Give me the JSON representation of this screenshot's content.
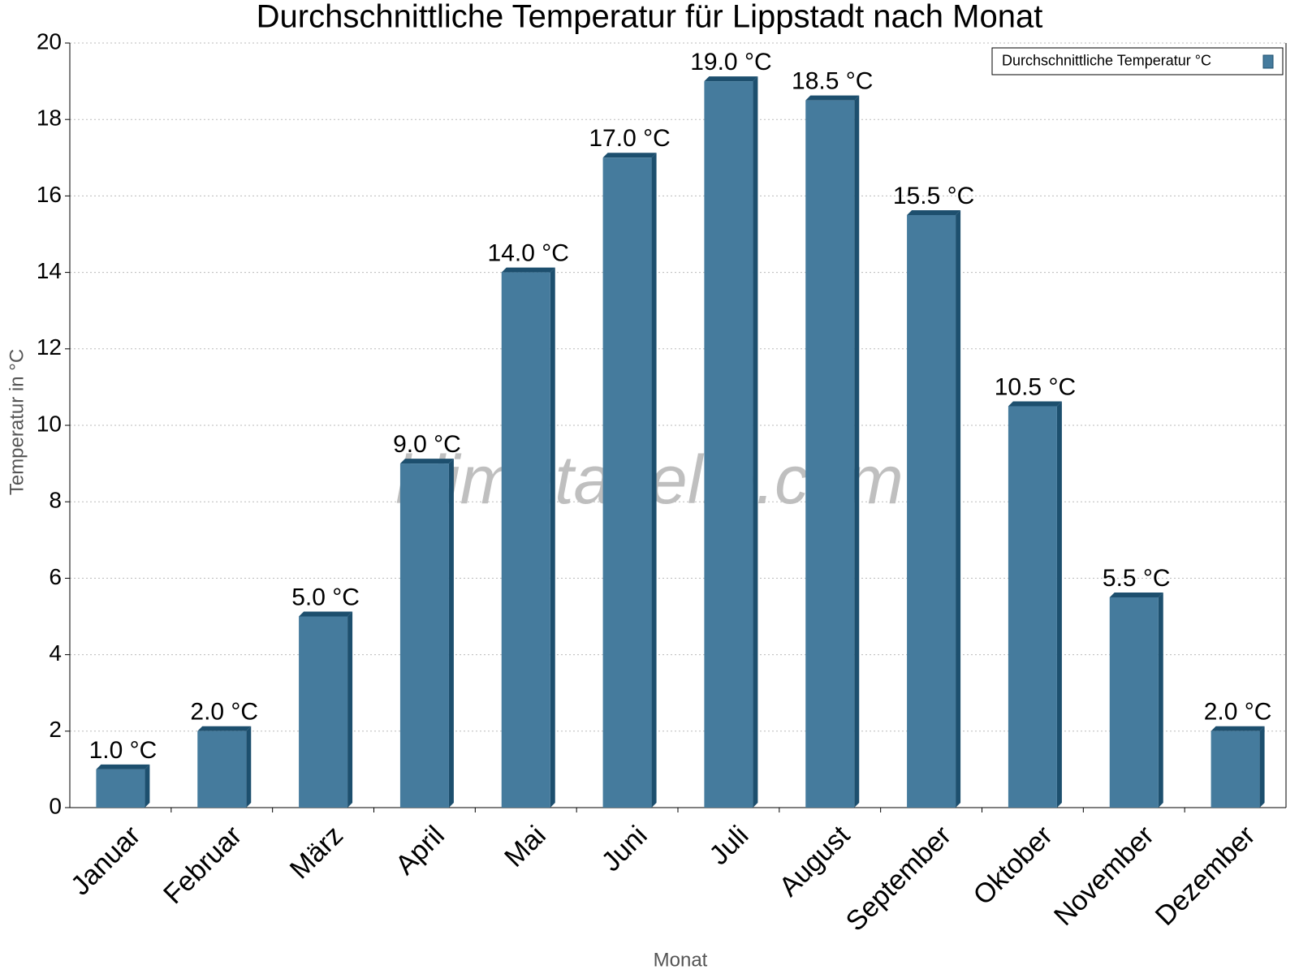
{
  "chart_data": {
    "type": "bar",
    "title": "Durchschnittliche Temperatur für Lippstadt nach Monat",
    "watermark": "klimatabelle.com",
    "x_label": "Monat",
    "y_label": "Temperatur in °C",
    "categories": [
      "Januar",
      "Februar",
      "März",
      "April",
      "Mai",
      "Juni",
      "Juli",
      "August",
      "September",
      "Oktober",
      "November",
      "Dezember"
    ],
    "series": [
      {
        "name": "Durchschnittliche Temperatur °C",
        "color": "#457b9d",
        "values": [
          1.0,
          2.0,
          5.0,
          9.0,
          14.0,
          17.0,
          19.0,
          18.5,
          15.5,
          10.5,
          5.5,
          2.0
        ],
        "value_labels": [
          "1.0 °C",
          "2.0 °C",
          "5.0 °C",
          "9.0 °C",
          "14.0 °C",
          "17.0 °C",
          "19.0 °C",
          "18.5 °C",
          "15.5 °C",
          "10.5 °C",
          "5.5 °C",
          "2.0 °C"
        ]
      }
    ],
    "ylim": [
      0,
      20
    ],
    "yticks": [
      0,
      2,
      4,
      6,
      8,
      10,
      12,
      14,
      16,
      18,
      20
    ],
    "grid": true,
    "legend": "upper right"
  }
}
